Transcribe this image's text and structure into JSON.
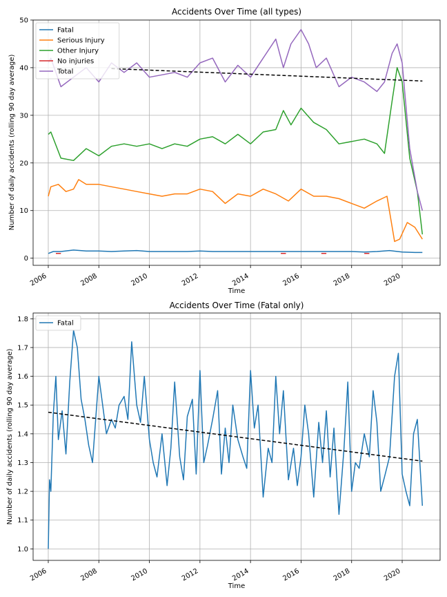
{
  "chart_data": [
    {
      "type": "line",
      "title": "Accidents Over Time (all types)",
      "xlabel": "Time",
      "ylabel": "Number of daily accidents (rolling 90 day average)",
      "xlim": [
        2005.4,
        2021.5
      ],
      "ylim": [
        -1.5,
        50
      ],
      "xticks": [
        2006,
        2008,
        2010,
        2012,
        2014,
        2016,
        2018,
        2020
      ],
      "xtick_labels": [
        "2006",
        "2008",
        "2010",
        "2012",
        "2014",
        "2016",
        "2018",
        "2020"
      ],
      "yticks": [
        0,
        10,
        20,
        30,
        40,
        50
      ],
      "ytick_labels": [
        "0",
        "10",
        "20",
        "30",
        "40",
        "50"
      ],
      "grid": true,
      "legend_position": "top-left",
      "series": [
        {
          "name": "Fatal",
          "color": "#1f77b4",
          "x": [
            2006.0,
            2006.2,
            2006.5,
            2007.0,
            2007.5,
            2008.0,
            2008.5,
            2009.0,
            2009.5,
            2010.0,
            2010.5,
            2011.0,
            2011.5,
            2012.0,
            2012.5,
            2013.0,
            2013.5,
            2014.0,
            2014.5,
            2015.0,
            2015.5,
            2016.0,
            2016.5,
            2017.0,
            2017.5,
            2018.0,
            2018.5,
            2019.0,
            2019.5,
            2020.0,
            2020.5,
            2020.8
          ],
          "y": [
            1.0,
            1.4,
            1.4,
            1.7,
            1.5,
            1.5,
            1.4,
            1.5,
            1.6,
            1.4,
            1.4,
            1.4,
            1.4,
            1.5,
            1.4,
            1.4,
            1.4,
            1.4,
            1.4,
            1.4,
            1.4,
            1.4,
            1.4,
            1.4,
            1.4,
            1.4,
            1.3,
            1.4,
            1.6,
            1.3,
            1.2,
            1.2
          ]
        },
        {
          "name": "Serious Injury",
          "color": "#ff7f0e",
          "x": [
            2006.0,
            2006.1,
            2006.4,
            2006.7,
            2007.0,
            2007.2,
            2007.5,
            2008.0,
            2008.5,
            2009.0,
            2009.5,
            2010.0,
            2010.5,
            2011.0,
            2011.5,
            2012.0,
            2012.5,
            2013.0,
            2013.5,
            2014.0,
            2014.5,
            2015.0,
            2015.5,
            2016.0,
            2016.5,
            2017.0,
            2017.5,
            2018.0,
            2018.5,
            2019.0,
            2019.4,
            2019.7,
            2019.9,
            2020.2,
            2020.5,
            2020.8
          ],
          "y": [
            13.0,
            15.0,
            15.5,
            14.0,
            14.5,
            16.5,
            15.5,
            15.5,
            15.0,
            14.5,
            14.0,
            13.5,
            13.0,
            13.5,
            13.5,
            14.5,
            14.0,
            11.5,
            13.5,
            13.0,
            14.5,
            13.5,
            12.0,
            14.5,
            13.0,
            13.0,
            12.5,
            11.5,
            10.5,
            12.0,
            13.0,
            3.5,
            4.0,
            7.5,
            6.5,
            4.0
          ]
        },
        {
          "name": "Other Injury",
          "color": "#2ca02c",
          "x": [
            2006.0,
            2006.1,
            2006.5,
            2007.0,
            2007.5,
            2008.0,
            2008.5,
            2009.0,
            2009.5,
            2010.0,
            2010.5,
            2011.0,
            2011.5,
            2012.0,
            2012.5,
            2013.0,
            2013.5,
            2014.0,
            2014.5,
            2015.0,
            2015.3,
            2015.6,
            2016.0,
            2016.5,
            2017.0,
            2017.5,
            2018.0,
            2018.5,
            2019.0,
            2019.3,
            2019.6,
            2019.8,
            2020.0,
            2020.3,
            2020.6,
            2020.8
          ],
          "y": [
            26.0,
            26.5,
            21.0,
            20.5,
            23.0,
            21.5,
            23.5,
            24.0,
            23.5,
            24.0,
            23.0,
            24.0,
            23.5,
            25.0,
            25.5,
            24.0,
            26.0,
            24.0,
            26.5,
            27.0,
            31.0,
            28.0,
            31.5,
            28.5,
            27.0,
            24.0,
            24.5,
            25.0,
            24.0,
            22.0,
            33.0,
            40.0,
            37.0,
            21.0,
            14.0,
            5.0
          ]
        },
        {
          "name": "No injuries",
          "color": "#d62728",
          "x": [
            2006.3,
            2006.5,
            null,
            2015.2,
            2015.4,
            null,
            2016.8,
            2017.0,
            null,
            2018.5,
            2018.7
          ],
          "y": [
            1.0,
            1.0,
            null,
            1.0,
            1.0,
            null,
            1.0,
            1.0,
            null,
            1.0,
            1.0
          ]
        },
        {
          "name": "Total",
          "color": "#9467bd",
          "x": [
            2006.0,
            2006.1,
            2006.5,
            2007.0,
            2007.5,
            2008.0,
            2008.5,
            2009.0,
            2009.5,
            2010.0,
            2010.5,
            2011.0,
            2011.5,
            2012.0,
            2012.5,
            2013.0,
            2013.5,
            2014.0,
            2014.5,
            2015.0,
            2015.3,
            2015.6,
            2016.0,
            2016.3,
            2016.6,
            2017.0,
            2017.5,
            2018.0,
            2018.5,
            2019.0,
            2019.3,
            2019.6,
            2019.8,
            2020.0,
            2020.3,
            2020.6,
            2020.8
          ],
          "y": [
            41.0,
            42.0,
            36.0,
            38.0,
            40.0,
            37.0,
            41.0,
            39.0,
            41.0,
            38.0,
            38.5,
            39.0,
            38.0,
            41.0,
            42.0,
            37.0,
            40.5,
            38.0,
            42.0,
            46.0,
            40.0,
            45.0,
            48.0,
            45.0,
            40.0,
            42.0,
            36.0,
            38.0,
            37.0,
            35.0,
            37.0,
            43.0,
            45.0,
            41.0,
            23.0,
            14.0,
            10.0
          ]
        }
      ],
      "trend": {
        "color": "#000000",
        "x": [
          2008.5,
          2020.8
        ],
        "y": [
          39.8,
          37.2
        ]
      }
    },
    {
      "type": "line",
      "title": "Accidents Over Time (Fatal only)",
      "xlabel": "Time",
      "ylabel": "Number of daily accidents (rolling 90 day average)",
      "xlim": [
        2005.4,
        2021.5
      ],
      "ylim": [
        0.96,
        1.82
      ],
      "xticks": [
        2006,
        2008,
        2010,
        2012,
        2014,
        2016,
        2018,
        2020
      ],
      "xtick_labels": [
        "2006",
        "2008",
        "2010",
        "2012",
        "2014",
        "2016",
        "2018",
        "2020"
      ],
      "yticks": [
        1.0,
        1.1,
        1.2,
        1.3,
        1.4,
        1.5,
        1.6,
        1.7,
        1.8
      ],
      "ytick_labels": [
        "1.0",
        "1.1",
        "1.2",
        "1.3",
        "1.4",
        "1.5",
        "1.6",
        "1.7",
        "1.8"
      ],
      "grid": true,
      "legend_position": "top-left",
      "series": [
        {
          "name": "Fatal",
          "color": "#1f77b4",
          "x": [
            2006.0,
            2006.05,
            2006.1,
            2006.2,
            2006.3,
            2006.4,
            2006.55,
            2006.7,
            2006.85,
            2007.0,
            2007.15,
            2007.3,
            2007.45,
            2007.6,
            2007.75,
            2007.9,
            2008.0,
            2008.15,
            2008.3,
            2008.5,
            2008.65,
            2008.8,
            2009.0,
            2009.15,
            2009.3,
            2009.5,
            2009.65,
            2009.8,
            2010.0,
            2010.15,
            2010.3,
            2010.5,
            2010.7,
            2010.85,
            2011.0,
            2011.2,
            2011.35,
            2011.5,
            2011.7,
            2011.85,
            2012.0,
            2012.15,
            2012.3,
            2012.5,
            2012.7,
            2012.85,
            2013.0,
            2013.15,
            2013.3,
            2013.5,
            2013.7,
            2013.85,
            2014.0,
            2014.15,
            2014.3,
            2014.5,
            2014.7,
            2014.85,
            2015.0,
            2015.15,
            2015.3,
            2015.5,
            2015.7,
            2015.85,
            2016.0,
            2016.15,
            2016.3,
            2016.5,
            2016.7,
            2016.85,
            2017.0,
            2017.15,
            2017.3,
            2017.5,
            2017.7,
            2017.85,
            2018.0,
            2018.15,
            2018.3,
            2018.5,
            2018.7,
            2018.85,
            2019.0,
            2019.15,
            2019.3,
            2019.5,
            2019.7,
            2019.85,
            2020.0,
            2020.15,
            2020.3,
            2020.45,
            2020.6,
            2020.8
          ],
          "y": [
            1.0,
            1.24,
            1.2,
            1.47,
            1.6,
            1.38,
            1.48,
            1.33,
            1.58,
            1.76,
            1.7,
            1.52,
            1.45,
            1.36,
            1.3,
            1.48,
            1.6,
            1.5,
            1.4,
            1.45,
            1.42,
            1.5,
            1.53,
            1.45,
            1.72,
            1.5,
            1.44,
            1.6,
            1.38,
            1.3,
            1.25,
            1.4,
            1.22,
            1.35,
            1.58,
            1.32,
            1.24,
            1.46,
            1.52,
            1.26,
            1.62,
            1.3,
            1.36,
            1.45,
            1.55,
            1.26,
            1.42,
            1.3,
            1.5,
            1.38,
            1.32,
            1.28,
            1.62,
            1.42,
            1.5,
            1.18,
            1.35,
            1.3,
            1.6,
            1.4,
            1.55,
            1.24,
            1.35,
            1.22,
            1.32,
            1.5,
            1.4,
            1.18,
            1.44,
            1.3,
            1.48,
            1.25,
            1.42,
            1.12,
            1.35,
            1.58,
            1.2,
            1.3,
            1.28,
            1.4,
            1.32,
            1.55,
            1.44,
            1.2,
            1.25,
            1.32,
            1.6,
            1.68,
            1.26,
            1.2,
            1.15,
            1.4,
            1.45,
            1.15
          ]
        }
      ],
      "trend": {
        "color": "#000000",
        "x": [
          2006.0,
          2020.8
        ],
        "y": [
          1.475,
          1.305
        ]
      }
    }
  ]
}
